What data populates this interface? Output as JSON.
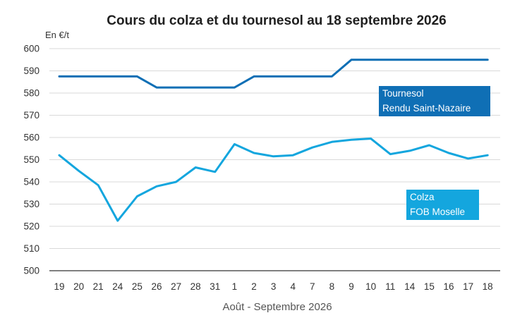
{
  "chart_data": {
    "type": "line",
    "title": "Cours du colza et du tournesol au 18 septembre 2026",
    "unit_label": "En €/t",
    "xlabel": "Août - Septembre 2026",
    "ylabel": "",
    "ylim": [
      500,
      600
    ],
    "yticks": [
      500,
      510,
      520,
      530,
      540,
      550,
      560,
      570,
      580,
      590,
      600
    ],
    "grid": true,
    "categories": [
      "19",
      "20",
      "21",
      "24",
      "25",
      "26",
      "27",
      "28",
      "31",
      "1",
      "2",
      "3",
      "4",
      "7",
      "8",
      "9",
      "10",
      "11",
      "14",
      "15",
      "16",
      "17",
      "18"
    ],
    "series": [
      {
        "name_lines": [
          "Tournesol",
          "Rendu Saint-Nazaire"
        ],
        "color": "#0f6fb5",
        "values": [
          587.5,
          587.5,
          587.5,
          587.5,
          587.5,
          582.5,
          582.5,
          582.5,
          582.5,
          582.5,
          587.5,
          587.5,
          587.5,
          587.5,
          587.5,
          595,
          595,
          595,
          595,
          595,
          595,
          595,
          595
        ]
      },
      {
        "name_lines": [
          "Colza",
          "FOB Moselle"
        ],
        "color": "#14a6de",
        "values": [
          552,
          545,
          538.5,
          522.5,
          533.5,
          538,
          540,
          546.5,
          544.5,
          557,
          553,
          551.5,
          552,
          555.5,
          558,
          559,
          559.5,
          552.5,
          554,
          556.5,
          553,
          550.5,
          552
        ]
      }
    ]
  }
}
